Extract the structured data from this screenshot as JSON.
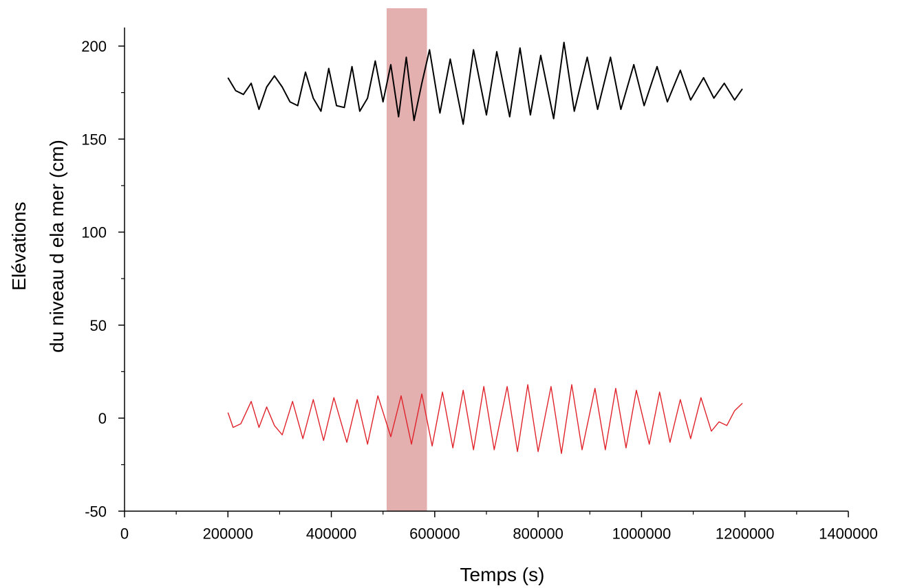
{
  "chart_data": {
    "type": "line",
    "title": "",
    "xlabel": "Temps (s)",
    "ylabel_line1": "Elévations",
    "ylabel_line2": "du niveau d ela mer (cm)",
    "xlim": [
      0,
      1400000
    ],
    "ylim": [
      -50,
      210
    ],
    "x_ticks": [
      0,
      200000,
      400000,
      600000,
      800000,
      1000000,
      1200000,
      1400000
    ],
    "x_tick_labels": [
      "0",
      "200000",
      "400000",
      "600000",
      "800000",
      "1000000",
      "1200000",
      "1400000"
    ],
    "y_ticks": [
      -50,
      0,
      50,
      100,
      150,
      200
    ],
    "y_tick_labels": [
      "-50",
      "0",
      "50",
      "100",
      "150",
      "200"
    ],
    "highlight_band": {
      "x_start": 507000,
      "x_end": 585000,
      "color": "#d98d8d"
    },
    "series": [
      {
        "color": "#000000",
        "x": [
          200000,
          215000,
          230000,
          245000,
          260000,
          275000,
          290000,
          305000,
          320000,
          335000,
          350000,
          365000,
          380000,
          395000,
          410000,
          425000,
          440000,
          455000,
          470000,
          485000,
          500000,
          515000,
          530000,
          545000,
          560000,
          575000,
          590000,
          610000,
          630000,
          655000,
          675000,
          700000,
          720000,
          745000,
          765000,
          785000,
          805000,
          830000,
          850000,
          870000,
          895000,
          915000,
          940000,
          960000,
          985000,
          1005000,
          1030000,
          1050000,
          1075000,
          1095000,
          1120000,
          1140000,
          1160000,
          1180000,
          1195000
        ],
        "y": [
          183,
          176,
          174,
          180,
          166,
          178,
          184,
          178,
          170,
          168,
          186,
          172,
          165,
          188,
          168,
          167,
          189,
          165,
          172,
          192,
          170,
          190,
          162,
          194,
          160,
          180,
          198,
          164,
          193,
          158,
          198,
          163,
          197,
          162,
          199,
          163,
          195,
          161,
          202,
          165,
          194,
          166,
          194,
          166,
          190,
          168,
          189,
          170,
          187,
          171,
          183,
          172,
          180,
          171,
          177
        ]
      },
      {
        "color": "#e0222a",
        "x": [
          200000,
          210000,
          225000,
          245000,
          260000,
          275000,
          290000,
          305000,
          325000,
          345000,
          365000,
          385000,
          405000,
          430000,
          450000,
          470000,
          490000,
          515000,
          535000,
          555000,
          575000,
          595000,
          615000,
          635000,
          655000,
          675000,
          695000,
          715000,
          740000,
          760000,
          780000,
          800000,
          825000,
          845000,
          865000,
          885000,
          910000,
          930000,
          950000,
          970000,
          990000,
          1015000,
          1035000,
          1055000,
          1075000,
          1095000,
          1115000,
          1135000,
          1150000,
          1165000,
          1180000,
          1195000
        ],
        "y": [
          3,
          -5,
          -3,
          9,
          -5,
          6,
          -4,
          -9,
          9,
          -11,
          10,
          -12,
          11,
          -13,
          10,
          -14,
          12,
          -10,
          12,
          -14,
          13,
          -15,
          14,
          -16,
          15,
          -17,
          17,
          -17,
          17,
          -18,
          18,
          -18,
          17,
          -19,
          18,
          -17,
          16,
          -17,
          16,
          -16,
          15,
          -14,
          14,
          -13,
          10,
          -11,
          11,
          -7,
          -2,
          -4,
          4,
          8
        ]
      }
    ]
  }
}
